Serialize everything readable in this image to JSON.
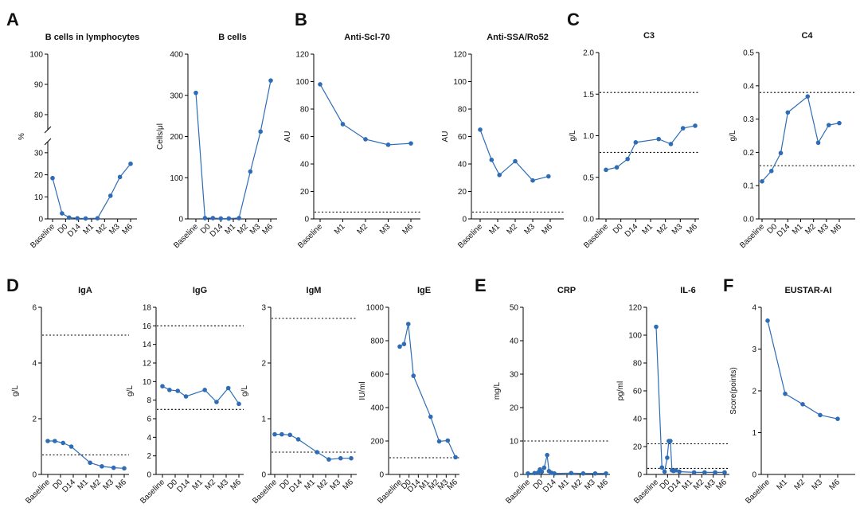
{
  "panel_letters": [
    "A",
    "B",
    "C",
    "D",
    "E",
    "F"
  ],
  "chart_data": [
    {
      "id": "b_cells_pct",
      "type": "line",
      "panel": "A",
      "title": "B cells in lymphocytes",
      "ylabel": "%",
      "ylim": [
        0,
        100
      ],
      "broken_axis": {
        "lower": [
          0,
          35
        ],
        "upper": [
          75,
          100
        ]
      },
      "yticks": [
        0,
        10,
        20,
        30,
        80,
        90,
        100
      ],
      "xticks": [
        "Baseline",
        "D0",
        "D14",
        "M1",
        "M2",
        "M3",
        "M6"
      ],
      "series": [
        {
          "x": [
            0,
            0.8,
            1.4,
            2.1,
            2.8,
            3.8,
            4.9,
            5.7,
            6.6
          ],
          "values": [
            18.5,
            2.5,
            0.6,
            0.3,
            0.2,
            0.3,
            10.5,
            19.0,
            25.0
          ]
        }
      ],
      "reference_lines": []
    },
    {
      "id": "b_cells_abs",
      "type": "line",
      "panel": "",
      "title": "B cells",
      "ylabel": "Cells/μl",
      "ylim": [
        0,
        400
      ],
      "yticks": [
        0,
        100,
        200,
        300,
        400
      ],
      "xticks": [
        "Baseline",
        "D0",
        "D14",
        "M1",
        "M2",
        "M3",
        "M6"
      ],
      "series": [
        {
          "x": [
            0,
            0.8,
            1.5,
            2.2,
            2.9,
            3.8,
            4.8,
            5.7,
            6.6
          ],
          "values": [
            306,
            2,
            2,
            1,
            1,
            2,
            115,
            212,
            336
          ]
        }
      ],
      "reference_lines": []
    },
    {
      "id": "anti_scl70",
      "type": "line",
      "panel": "B",
      "title": "Anti-Scl-70",
      "ylabel": "AU",
      "ylim": [
        0,
        120
      ],
      "yticks": [
        0,
        20,
        40,
        60,
        80,
        100,
        120
      ],
      "xticks": [
        "Baseline",
        "M1",
        "M2",
        "M3",
        "M6"
      ],
      "series": [
        {
          "x": [
            0,
            1,
            2,
            3,
            4
          ],
          "values": [
            98,
            69,
            58,
            54,
            55
          ]
        }
      ],
      "reference_lines": [
        5
      ]
    },
    {
      "id": "anti_ssa_ro52",
      "type": "line",
      "panel": "",
      "title": "Anti-SSA/Ro52",
      "ylabel": "AU",
      "ylim": [
        0,
        120
      ],
      "yticks": [
        0,
        20,
        40,
        60,
        80,
        100,
        120
      ],
      "xticks": [
        "Baseline",
        "M1",
        "M2",
        "M3",
        "M6"
      ],
      "series": [
        {
          "x": [
            0,
            0.65,
            1.1,
            2.0,
            3.0,
            3.9
          ],
          "values": [
            65,
            43,
            32,
            42,
            28,
            31
          ]
        }
      ],
      "reference_lines": [
        5
      ]
    },
    {
      "id": "c3",
      "type": "line",
      "panel": "C",
      "title": "C3",
      "ylabel": "g/L",
      "ylim": [
        0,
        2.0
      ],
      "yticks": [
        "0.0",
        "0.5",
        "1.0",
        "1.5",
        "2.0"
      ],
      "ytick_values": [
        0,
        0.5,
        1.0,
        1.5,
        2.0
      ],
      "xticks": [
        "Baseline",
        "D0",
        "D14",
        "M1",
        "M2",
        "M3",
        "M6"
      ],
      "series": [
        {
          "x": [
            0,
            0.8,
            1.6,
            2.2,
            3.9,
            4.8,
            5.7,
            6.6
          ],
          "values": [
            0.59,
            0.62,
            0.72,
            0.92,
            0.96,
            0.9,
            1.09,
            1.12
          ]
        }
      ],
      "reference_lines": [
        0.8,
        1.52
      ]
    },
    {
      "id": "c4",
      "type": "line",
      "panel": "",
      "title": "C4",
      "ylabel": "g/L",
      "ylim": [
        0,
        0.5
      ],
      "yticks": [
        "0.0",
        "0.1",
        "0.2",
        "0.3",
        "0.4",
        "0.5"
      ],
      "ytick_values": [
        0,
        0.1,
        0.2,
        0.3,
        0.4,
        0.5
      ],
      "xticks": [
        "Baseline",
        "D0",
        "D14",
        "M1",
        "M2",
        "M3",
        "M6"
      ],
      "series": [
        {
          "x": [
            0,
            0.8,
            1.6,
            2.2,
            3.9,
            4.8,
            5.7,
            6.6
          ],
          "values": [
            0.113,
            0.144,
            0.198,
            0.32,
            0.368,
            0.229,
            0.282,
            0.288
          ]
        }
      ],
      "reference_lines": [
        0.16,
        0.38
      ]
    },
    {
      "id": "iga",
      "type": "line",
      "panel": "D",
      "title": "IgA",
      "ylabel": "g/L",
      "ylim": [
        0,
        6
      ],
      "yticks": [
        0,
        2,
        4,
        6
      ],
      "xticks": [
        "Baseline",
        "D0",
        "D14",
        "M1",
        "M2",
        "M3",
        "M6"
      ],
      "series": [
        {
          "x": [
            0,
            0.6,
            1.3,
            2.0,
            3.6,
            4.6,
            5.6,
            6.5
          ],
          "values": [
            1.2,
            1.2,
            1.13,
            1.0,
            0.42,
            0.29,
            0.24,
            0.22
          ]
        }
      ],
      "reference_lines": [
        0.7,
        5.0
      ]
    },
    {
      "id": "igg",
      "type": "line",
      "panel": "",
      "title": "IgG",
      "ylabel": "g/L",
      "ylim": [
        0,
        18
      ],
      "yticks": [
        0,
        2,
        4,
        6,
        8,
        10,
        12,
        14,
        16,
        18
      ],
      "xticks": [
        "Baseline",
        "D0",
        "D14",
        "M1",
        "M2",
        "M3",
        "M6"
      ],
      "series": [
        {
          "x": [
            0,
            0.6,
            1.3,
            2.0,
            3.6,
            4.6,
            5.6,
            6.5
          ],
          "values": [
            9.5,
            9.1,
            9.0,
            8.4,
            9.1,
            7.8,
            9.3,
            7.6
          ]
        }
      ],
      "reference_lines": [
        7,
        16
      ]
    },
    {
      "id": "igm",
      "type": "line",
      "panel": "",
      "title": "IgM",
      "ylabel": "g/L",
      "ylim": [
        0,
        3
      ],
      "yticks": [
        0,
        1,
        2,
        3
      ],
      "xticks": [
        "Baseline",
        "D0",
        "D14",
        "M1",
        "M2",
        "M3",
        "M6"
      ],
      "series": [
        {
          "x": [
            0,
            0.6,
            1.3,
            2.0,
            3.6,
            4.6,
            5.6,
            6.5
          ],
          "values": [
            0.72,
            0.72,
            0.71,
            0.63,
            0.4,
            0.27,
            0.29,
            0.29
          ]
        }
      ],
      "reference_lines": [
        0.4,
        2.8
      ]
    },
    {
      "id": "ige",
      "type": "line",
      "panel": "",
      "title": "IgE",
      "ylabel": "IU/ml",
      "ylim": [
        0,
        1000
      ],
      "yticks": [
        0,
        200,
        400,
        600,
        800,
        1000
      ],
      "xticks": [
        "Baseline",
        "D0",
        "D14",
        "M1",
        "M2",
        "M3",
        "M6"
      ],
      "series": [
        {
          "x": [
            0,
            0.5,
            1.0,
            1.6,
            3.6,
            4.6,
            5.6,
            6.5
          ],
          "values": [
            765,
            780,
            900,
            590,
            345,
            198,
            203,
            103
          ]
        }
      ],
      "reference_lines": [
        100
      ]
    },
    {
      "id": "crp",
      "type": "line",
      "panel": "E",
      "title": "CRP",
      "ylabel": "mg/L",
      "ylim": [
        0,
        50
      ],
      "yticks": [
        0,
        10,
        20,
        30,
        40,
        50
      ],
      "xticks": [
        "Baseline",
        "D0",
        "D14",
        "M1",
        "M2",
        "M3",
        "M6"
      ],
      "series": [
        {
          "x": [
            0,
            0.55,
            0.85,
            1.0,
            1.15,
            1.35,
            1.6,
            1.75,
            1.95,
            2.2,
            3.6,
            4.6,
            5.6,
            6.5
          ],
          "values": [
            0.3,
            0.4,
            0.6,
            1.5,
            0.8,
            2.0,
            5.8,
            1.0,
            0.5,
            0.3,
            0.4,
            0.3,
            0.3,
            0.3
          ]
        }
      ],
      "reference_lines": [
        10
      ]
    },
    {
      "id": "il6",
      "type": "line",
      "panel": "",
      "title": "IL-6",
      "ylabel": "pg/ml",
      "ylim": [
        0,
        120
      ],
      "yticks": [
        0,
        20,
        40,
        60,
        80,
        100,
        120
      ],
      "xticks": [
        "Baseline",
        "D0",
        "D14",
        "M1",
        "M2",
        "M3",
        "M6"
      ],
      "series": [
        {
          "x": [
            0,
            0.55,
            0.8,
            1.05,
            1.2,
            1.35,
            1.5,
            1.65,
            1.85,
            2.2,
            3.6,
            4.6,
            5.6,
            6.5
          ],
          "values": [
            106,
            5,
            2,
            12,
            24,
            24,
            3,
            2.5,
            3,
            2,
            1.5,
            1.5,
            1.5,
            1.5
          ]
        }
      ],
      "reference_lines": [
        4.3,
        22
      ]
    },
    {
      "id": "eustar",
      "type": "line",
      "panel": "F",
      "title": "EUSTAR-AI",
      "ylabel": "Score(points)",
      "ylim": [
        0,
        4
      ],
      "yticks": [
        0,
        1,
        2,
        3,
        4
      ],
      "xticks": [
        "Baseline",
        "M1",
        "M2",
        "M3",
        "M6"
      ],
      "series": [
        {
          "x": [
            0,
            1,
            2,
            3,
            4
          ],
          "values": [
            3.68,
            1.93,
            1.68,
            1.42,
            1.33
          ]
        }
      ],
      "reference_lines": []
    }
  ]
}
